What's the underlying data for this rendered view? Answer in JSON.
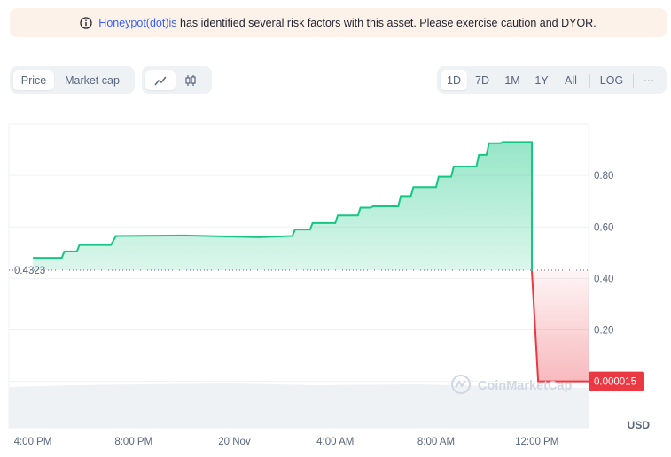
{
  "banner": {
    "link_text": "Honeypot(dot)is",
    "message": " has identified several risk factors with this asset. Please exercise caution and DYOR."
  },
  "controls": {
    "metric_tabs": [
      {
        "label": "Price",
        "active": true
      },
      {
        "label": "Market cap",
        "active": false
      }
    ],
    "chart_type_icons": [
      "line-chart-icon",
      "candlestick-icon"
    ],
    "ranges": [
      {
        "label": "1D",
        "active": true
      },
      {
        "label": "7D",
        "active": false
      },
      {
        "label": "1M",
        "active": false
      },
      {
        "label": "1Y",
        "active": false
      },
      {
        "label": "All",
        "active": false
      }
    ],
    "log_label": "LOG",
    "more_label": "···"
  },
  "chart_data": {
    "type": "area",
    "y_ticks": [
      "0.80",
      "0.60",
      "0.40",
      "0.20"
    ],
    "y_tick_values": [
      0.8,
      0.6,
      0.4,
      0.2
    ],
    "ylim": [
      -0.18,
      1.0
    ],
    "x_ticks": [
      "4:00 PM",
      "8:00 PM",
      "20 Nov",
      "4:00 AM",
      "8:00 AM",
      "12:00 PM"
    ],
    "x_tick_hours": [
      0,
      4,
      8,
      12,
      16,
      20
    ],
    "xlim": [
      -0.95,
      22.05
    ],
    "reference_label": "0.4323",
    "reference_value": 0.4323,
    "current_label": "0.000015",
    "current_value": 1.5e-05,
    "unit": "USD",
    "watermark": "CoinMarketCap",
    "colors": {
      "up": "#16c784",
      "down": "#ea3943",
      "current_bg": "#ea3943"
    },
    "series": [
      {
        "x": [
          0,
          1.15,
          1.25,
          1.75,
          1.85,
          3.1,
          3.3,
          6,
          9,
          10.3,
          10.4,
          11,
          11.1,
          12,
          12.1,
          12.9,
          13,
          13.4,
          13.5,
          14.5,
          14.6,
          15,
          15.1,
          16,
          16.1,
          16.6,
          16.7,
          17.6,
          17.7,
          18,
          18.1,
          18.55,
          18.65,
          19.8,
          19.8,
          20.05,
          22.05
        ],
        "y": [
          0.48,
          0.48,
          0.505,
          0.505,
          0.53,
          0.53,
          0.565,
          0.567,
          0.56,
          0.565,
          0.59,
          0.59,
          0.615,
          0.615,
          0.645,
          0.645,
          0.675,
          0.675,
          0.68,
          0.68,
          0.72,
          0.72,
          0.755,
          0.755,
          0.795,
          0.795,
          0.835,
          0.835,
          0.88,
          0.88,
          0.925,
          0.925,
          0.93,
          0.93,
          0.43,
          0.0,
          0.0
        ]
      }
    ]
  }
}
